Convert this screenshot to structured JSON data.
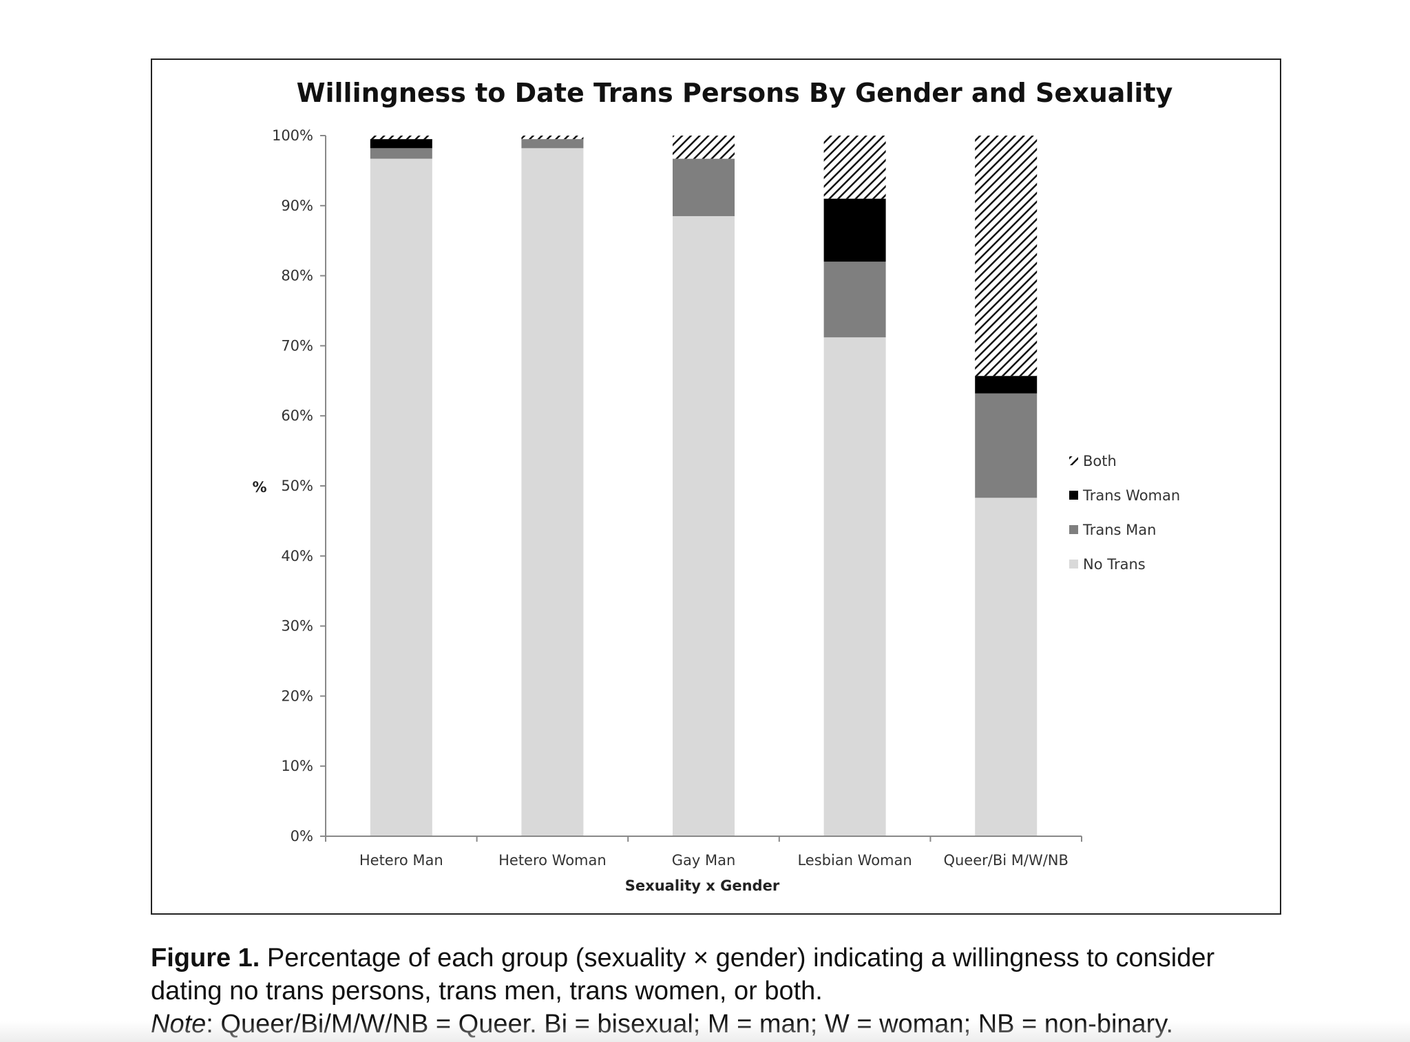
{
  "chart_data": {
    "type": "bar",
    "stacked": true,
    "title": "Willingness to Date Trans Persons By Gender and Sexuality",
    "xlabel": "Sexuality x Gender",
    "ylabel": "%",
    "ylim": [
      0,
      100
    ],
    "yticks": [
      "0%",
      "10%",
      "20%",
      "30%",
      "40%",
      "50%",
      "60%",
      "70%",
      "80%",
      "90%",
      "100%"
    ],
    "grid": false,
    "legend_position": "right",
    "categories": [
      "Hetero Man",
      "Hetero Woman",
      "Gay Man",
      "Lesbian Woman",
      "Queer/Bi M/W/NB"
    ],
    "series": [
      {
        "name": "No Trans",
        "values": [
          96.7,
          98.2,
          88.5,
          71.2,
          48.3
        ],
        "color": "#d9d9d9",
        "pattern": "solid"
      },
      {
        "name": "Trans Man",
        "values": [
          1.5,
          1.3,
          8.2,
          10.8,
          14.9
        ],
        "color": "#7f7f7f",
        "pattern": "solid"
      },
      {
        "name": "Trans Woman",
        "values": [
          1.3,
          0.0,
          0.0,
          9.0,
          2.5
        ],
        "color": "#000000",
        "pattern": "solid"
      },
      {
        "name": "Both",
        "values": [
          0.5,
          0.5,
          3.3,
          9.0,
          34.3
        ],
        "color": "#000000",
        "pattern": "diagonal-hatch"
      }
    ],
    "legend_order": [
      "Both",
      "Trans Woman",
      "Trans Man",
      "No Trans"
    ]
  },
  "caption": {
    "figure_label": "Figure 1.",
    "figure_text": " Percentage of each group (sexuality × gender) indicating a willingness to consider dating no trans persons, trans men, trans women, or both.",
    "note_label": "Note",
    "note_text": ": Queer/Bi/M/W/NB = Queer. Bi = bisexual; M = man; W = woman; NB = non-binary."
  }
}
